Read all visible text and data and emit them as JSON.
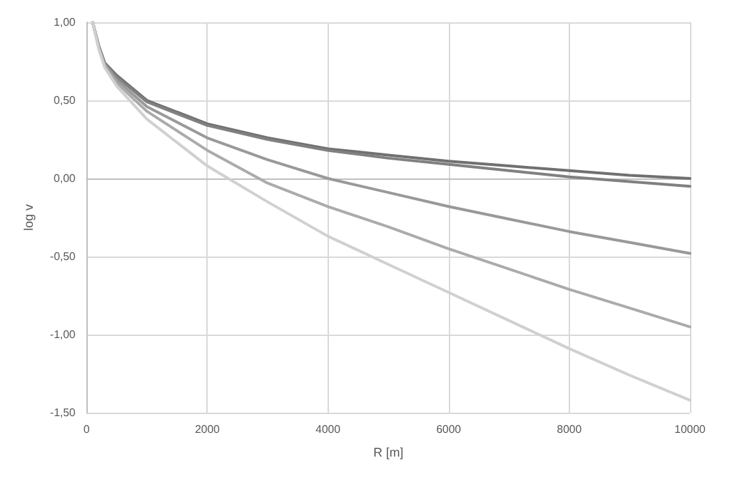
{
  "chart_data": {
    "type": "line",
    "xlabel": "R [m]",
    "ylabel": "log v",
    "x": [
      100,
      200,
      300,
      500,
      1000,
      2000,
      3000,
      4000,
      5000,
      6000,
      7000,
      8000,
      9000,
      10000
    ],
    "series": [
      {
        "color": "#707070",
        "values": [
          1.0,
          0.85,
          0.74,
          0.66,
          0.5,
          0.35,
          0.26,
          0.19,
          0.15,
          0.11,
          0.08,
          0.05,
          0.02,
          0.0
        ]
      },
      {
        "color": "#808080",
        "values": [
          1.0,
          0.85,
          0.74,
          0.65,
          0.49,
          0.34,
          0.25,
          0.18,
          0.13,
          0.09,
          0.05,
          0.01,
          -0.02,
          -0.05
        ]
      },
      {
        "color": "#999999",
        "values": [
          1.0,
          0.84,
          0.73,
          0.63,
          0.46,
          0.26,
          0.12,
          0.0,
          -0.09,
          -0.18,
          -0.26,
          -0.34,
          -0.41,
          -0.48
        ]
      },
      {
        "color": "#ababab",
        "values": [
          1.0,
          0.84,
          0.72,
          0.61,
          0.43,
          0.18,
          -0.03,
          -0.18,
          -0.31,
          -0.45,
          -0.58,
          -0.71,
          -0.83,
          -0.95
        ]
      },
      {
        "color": "#d0d0d0",
        "values": [
          1.0,
          0.83,
          0.71,
          0.59,
          0.38,
          0.08,
          -0.15,
          -0.37,
          -0.55,
          -0.73,
          -0.91,
          -1.09,
          -1.26,
          -1.42
        ]
      }
    ],
    "xlim": [
      0,
      10000
    ],
    "xticks": [
      0,
      2000,
      4000,
      6000,
      8000,
      10000
    ],
    "ylim": [
      -1.5,
      1.0
    ],
    "yticks": [
      {
        "value": -1.5,
        "label": "-1,50"
      },
      {
        "value": -1.0,
        "label": "-1,00"
      },
      {
        "value": -0.5,
        "label": "-0,50"
      },
      {
        "value": 0,
        "label": "0,00"
      },
      {
        "value": 0.5,
        "label": "0,50"
      },
      {
        "value": 1.0,
        "label": "1,00"
      }
    ],
    "grid": true,
    "marker": "none",
    "line_style": "solid"
  }
}
